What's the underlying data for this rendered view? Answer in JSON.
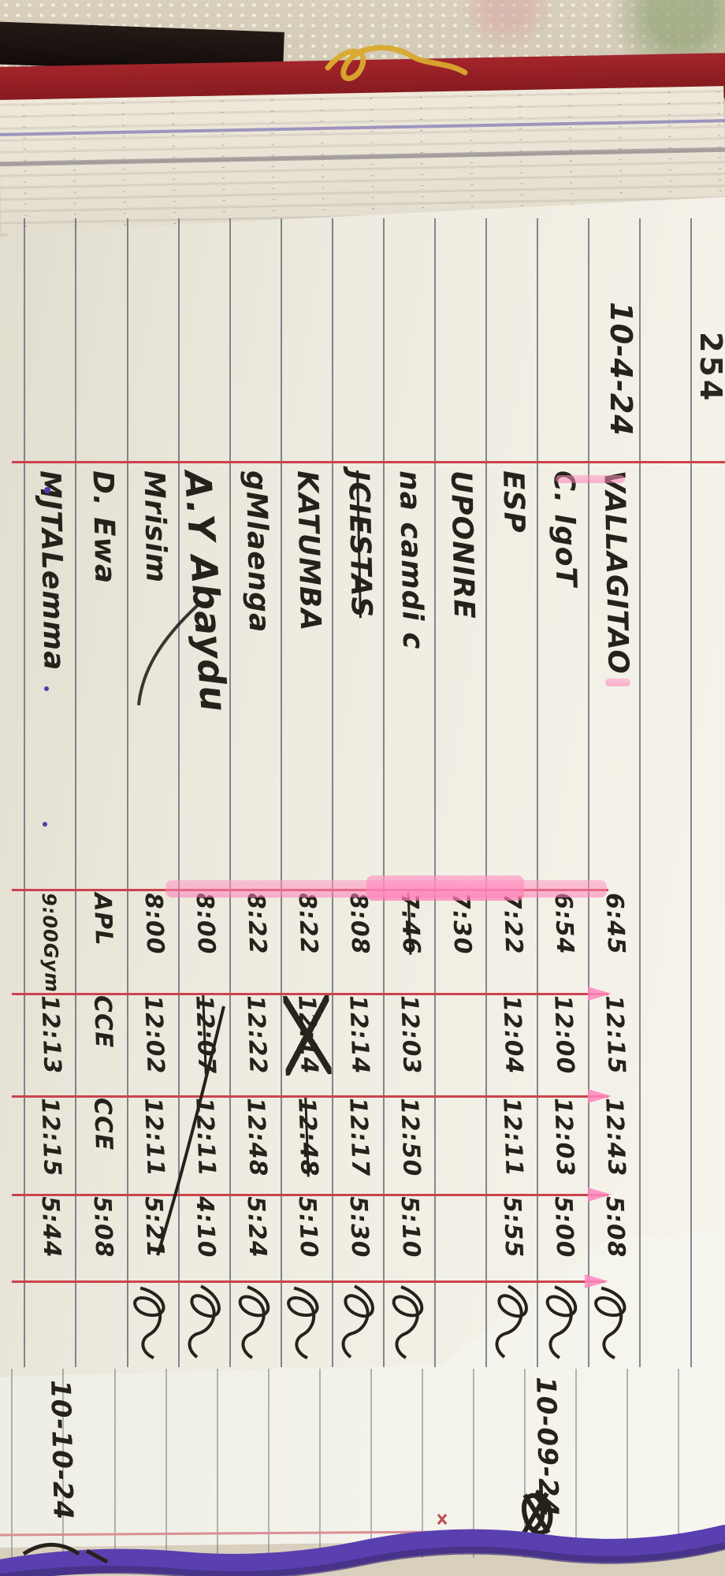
{
  "photo_caption": "Handwritten attendance ledger photographed sideways on lace cloth",
  "ledger": {
    "page_number": "254",
    "date": "10-4-24",
    "rows": [
      {
        "name": "VALLAGITAO",
        "name_struck": false,
        "times": [
          {
            "v": "6:45"
          },
          {
            "v": "12:15"
          },
          {
            "v": "12:43"
          },
          {
            "v": "5:08"
          }
        ],
        "sig": true,
        "big": false
      },
      {
        "name": "C. IgoT",
        "name_struck": false,
        "times": [
          {
            "v": "6:54"
          },
          {
            "v": "12:00"
          },
          {
            "v": "12:03"
          },
          {
            "v": "5:00"
          }
        ],
        "sig": true,
        "big": false
      },
      {
        "name": "ESP",
        "name_struck": false,
        "times": [
          {
            "v": "7:22"
          },
          {
            "v": "12:04"
          },
          {
            "v": "12:11"
          },
          {
            "v": "5:55"
          }
        ],
        "sig": true,
        "big": false
      },
      {
        "name": "UPONIRE",
        "name_struck": false,
        "times": [
          {
            "v": "7:30"
          },
          {
            "v": ""
          },
          {
            "v": ""
          },
          {
            "v": ""
          }
        ],
        "sig": false,
        "big": false
      },
      {
        "name": "na camdi c",
        "name_struck": false,
        "times": [
          {
            "v": "7:46",
            "struck": true
          },
          {
            "v": "12:03"
          },
          {
            "v": "12:50"
          },
          {
            "v": "5:10"
          }
        ],
        "sig": true,
        "big": false
      },
      {
        "name": "JCIESTAS",
        "name_struck": true,
        "times": [
          {
            "v": "8:08"
          },
          {
            "v": "12:14"
          },
          {
            "v": "12:17"
          },
          {
            "v": "5:30"
          }
        ],
        "sig": true,
        "big": false
      },
      {
        "name": "KATUMBA",
        "name_struck": false,
        "times": [
          {
            "v": "8:22"
          },
          {
            "v": "12:14",
            "crossed": true
          },
          {
            "v": "12:48",
            "struck": true
          },
          {
            "v": "5:10"
          }
        ],
        "sig": true,
        "big": false
      },
      {
        "name": "gMlaenga",
        "name_struck": false,
        "times": [
          {
            "v": "8:22"
          },
          {
            "v": "12:22"
          },
          {
            "v": "12:48"
          },
          {
            "v": "5:24"
          }
        ],
        "sig": true,
        "big": false
      },
      {
        "name": "A.Y Abaydu",
        "name_struck": false,
        "times": [
          {
            "v": "8:00"
          },
          {
            "v": "12:07",
            "struck": true
          },
          {
            "v": "12:11"
          },
          {
            "v": "4:10"
          }
        ],
        "sig": true,
        "big": true
      },
      {
        "name": "Mrisim",
        "name_struck": false,
        "times": [
          {
            "v": "8:00"
          },
          {
            "v": "12:02"
          },
          {
            "v": "12:11"
          },
          {
            "v": "5:21"
          }
        ],
        "sig": true,
        "big": false
      },
      {
        "name": "D. Ewa",
        "name_struck": false,
        "times": [
          {
            "v": "APL"
          },
          {
            "v": "CCE"
          },
          {
            "v": "CCE"
          },
          {
            "v": "5:08"
          }
        ],
        "sig": false,
        "big": false
      },
      {
        "name": "MJTALemma",
        "name_struck": false,
        "times": [
          {
            "v": "9:00Gym"
          },
          {
            "v": "12:13"
          },
          {
            "v": "12:15"
          },
          {
            "v": "5:44"
          }
        ],
        "sig": false,
        "big": false
      }
    ]
  },
  "under_page": {
    "left_date": "10-10-24",
    "right_date": "10-09-24"
  },
  "colors": {
    "ink": "#27211b",
    "paper": "#f0ede3",
    "rule_line": "#565e6e",
    "red_margin": "#cb434d",
    "pink_highlight": "#ff86bc",
    "cover_red": "#8f2026",
    "cover_black": "#1a1312",
    "lace": "#d8cfbd",
    "stack_purple": "#8f86b8",
    "yarn_purple": "#5a3fb0",
    "gold": "#d9a92c",
    "blue_dot": "#4a3fae"
  }
}
